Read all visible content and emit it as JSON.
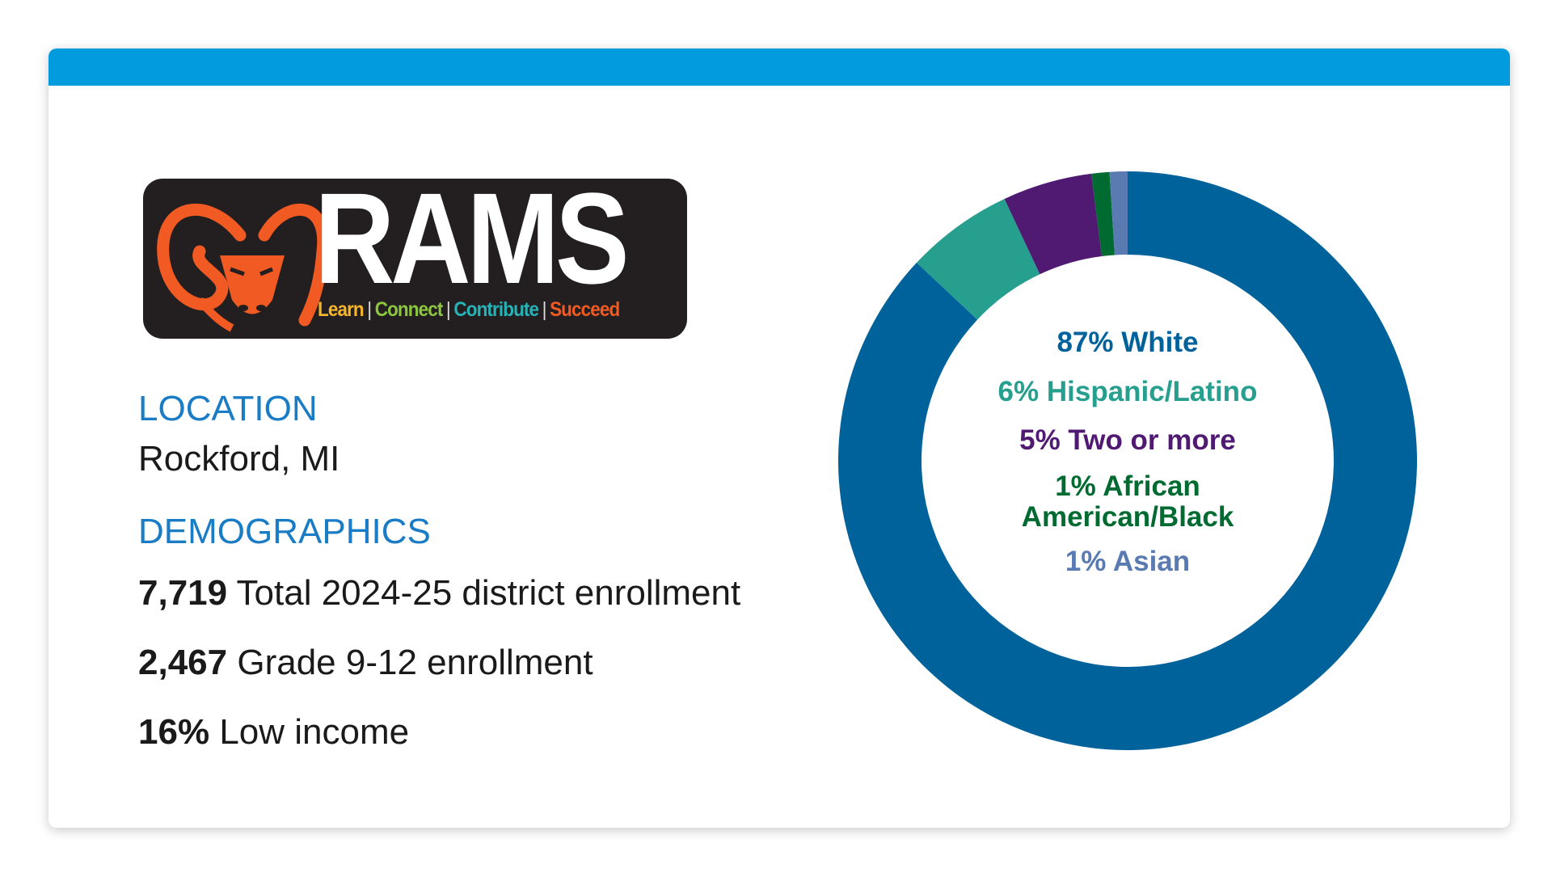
{
  "logo": {
    "word": "RAMS",
    "tagline": [
      {
        "text": "Learn",
        "color": "#f7b52c"
      },
      {
        "text": "Connect",
        "color": "#8cc63f"
      },
      {
        "text": "Contribute",
        "color": "#27b2b6"
      },
      {
        "text": "Succeed",
        "color": "#f15a22"
      }
    ],
    "separator": "|",
    "mascot_color": "#f15a22",
    "icon": "ram-head-icon"
  },
  "location": {
    "label": "LOCATION",
    "value": "Rockford, MI"
  },
  "demographics": {
    "label": "DEMOGRAPHICS",
    "stats": [
      {
        "number": "7,719",
        "text": "Total 2024-25 district enrollment"
      },
      {
        "number": "2,467",
        "text": "Grade 9-12 enrollment"
      },
      {
        "number": "16%",
        "text": "Low income"
      }
    ]
  },
  "chart_data": {
    "type": "pie",
    "donut": true,
    "labels": [
      "87% White",
      "6% Hispanic/Latino",
      "5% Two or more",
      "1% African American/Black",
      "1% Asian"
    ],
    "values": [
      87,
      6,
      5,
      1,
      1
    ],
    "colors": [
      "#00629b",
      "#279f8f",
      "#501a73",
      "#006b31",
      "#5a7ab2"
    ],
    "legend": "center"
  },
  "colors": {
    "accent_bar": "#029cde",
    "label_blue": "#1a7cc5"
  }
}
